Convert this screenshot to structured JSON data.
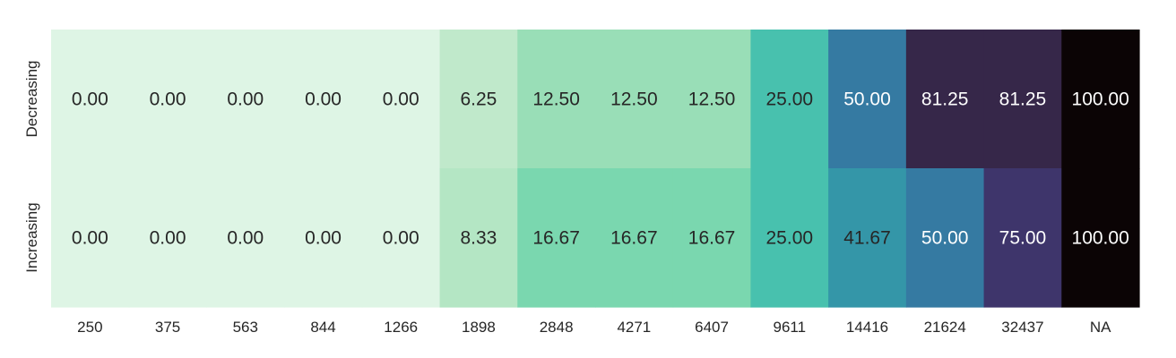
{
  "chart_data": {
    "type": "heatmap",
    "title": "",
    "xlabel": "",
    "ylabel": "",
    "x_categories": [
      "250",
      "375",
      "563",
      "844",
      "1266",
      "1898",
      "2848",
      "4271",
      "6407",
      "9611",
      "14416",
      "21624",
      "32437",
      "NA"
    ],
    "y_categories": [
      "Decreasing",
      "Increasing"
    ],
    "values": [
      [
        0.0,
        0.0,
        0.0,
        0.0,
        0.0,
        6.25,
        12.5,
        12.5,
        12.5,
        25.0,
        50.0,
        81.25,
        81.25,
        100.0
      ],
      [
        0.0,
        0.0,
        0.0,
        0.0,
        0.0,
        8.33,
        16.67,
        16.67,
        16.67,
        25.0,
        41.67,
        50.0,
        75.0,
        100.0
      ]
    ],
    "value_format": "2 decimals",
    "value_range": [
      0,
      100
    ],
    "colormap": "mako_r",
    "colorbar": false,
    "grid": false,
    "legend": "none"
  }
}
